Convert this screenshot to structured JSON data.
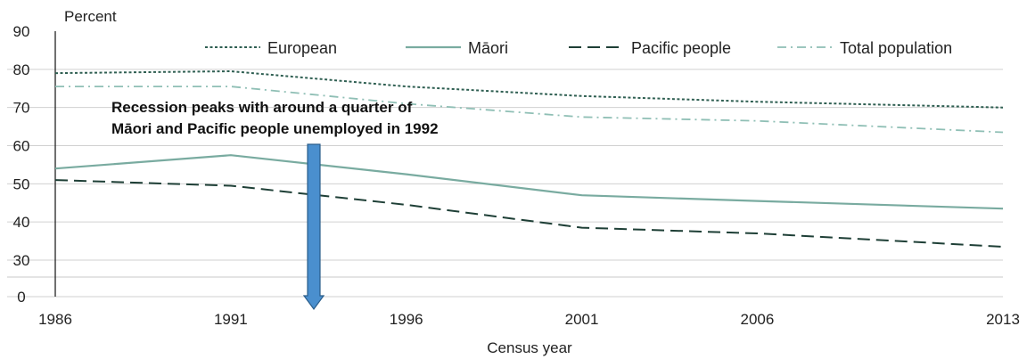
{
  "chart_data": {
    "type": "line",
    "xlabel": "Census year",
    "ylabel": "Percent",
    "x": [
      1986,
      1991,
      1996,
      2001,
      2006,
      2013
    ],
    "xticks": [
      "1986",
      "1991",
      "1996",
      "2001",
      "2006",
      "2013"
    ],
    "yticks": [
      "0",
      "30",
      "40",
      "50",
      "60",
      "70",
      "80",
      "90"
    ],
    "ylim": [
      0,
      90
    ],
    "y_axis_break": "between 0 and 30",
    "grid": "horizontal",
    "legend_position": "top",
    "series": [
      {
        "name": "European",
        "style": "dotted",
        "color": "#2f5f52",
        "values": [
          79,
          79.5,
          75.5,
          73,
          71.5,
          70
        ]
      },
      {
        "name": "Māori",
        "style": "solid",
        "color": "#79aba0",
        "values": [
          54,
          57.5,
          52.5,
          47,
          45.5,
          43.5
        ]
      },
      {
        "name": "Pacific people",
        "style": "dashed",
        "color": "#1e3f36",
        "values": [
          51,
          49.5,
          44.5,
          38.5,
          37,
          33.5
        ]
      },
      {
        "name": "Total population",
        "style": "dashdot",
        "color": "#8fbfb5",
        "values": [
          75.5,
          75.5,
          71,
          67.5,
          66.5,
          63.5
        ]
      }
    ],
    "annotation": {
      "lines": [
        "Recession peaks with around a quarter of",
        "Māori and Pacific people unemployed in 1992"
      ],
      "x": 1992,
      "arrow_color": "#4a8fce"
    }
  }
}
